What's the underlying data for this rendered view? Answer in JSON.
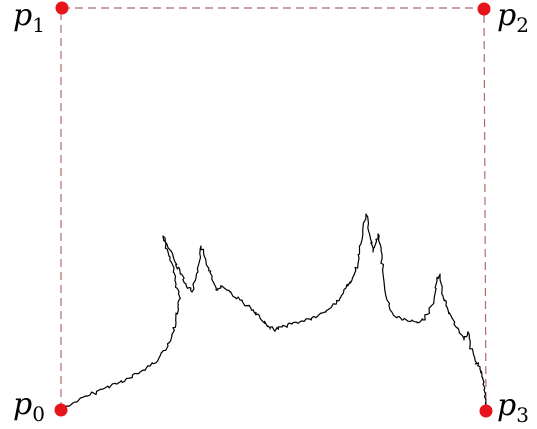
{
  "diagram": {
    "points": [
      {
        "id": "p0",
        "letter": "p",
        "sub": "0"
      },
      {
        "id": "p1",
        "letter": "p",
        "sub": "1"
      },
      {
        "id": "p2",
        "letter": "p",
        "sub": "2"
      },
      {
        "id": "p3",
        "letter": "p",
        "sub": "3"
      }
    ],
    "colors": {
      "point": "#e8141c",
      "dashed": "#b06a6a",
      "curve": "#000000"
    }
  }
}
